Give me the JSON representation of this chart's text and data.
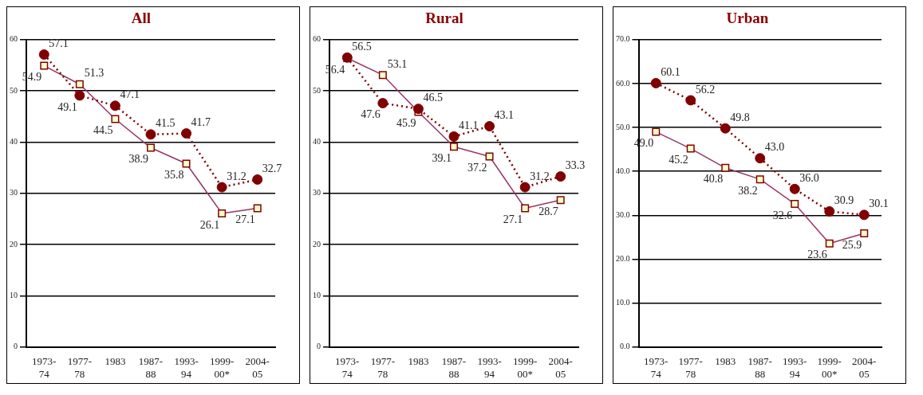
{
  "chart_data": [
    {
      "type": "line",
      "title": "All",
      "categories": [
        "1973-74",
        "1977-78",
        "1983",
        "1987-88",
        "1993-94",
        "1999-00*",
        "2004-05"
      ],
      "ylim": [
        0,
        60
      ],
      "yticks": [
        0,
        10,
        20,
        30,
        40,
        50,
        60
      ],
      "grid": "y",
      "legend": false,
      "data_labels": true,
      "series": [
        {
          "color": "#800000",
          "marker": "circle",
          "line_style": "dotted",
          "values": [
            57.1,
            49.1,
            47.1,
            41.5,
            41.7,
            31.2,
            32.7
          ]
        },
        {
          "color": "#993366",
          "marker": "square",
          "line_style": "solid",
          "values": [
            54.9,
            51.3,
            44.5,
            38.9,
            35.8,
            26.1,
            27.1
          ]
        }
      ]
    },
    {
      "type": "line",
      "title": "Rural",
      "categories": [
        "1973-74",
        "1977-78",
        "1983",
        "1987-88",
        "1993-94",
        "1999-00*",
        "2004-05"
      ],
      "ylim": [
        0,
        60
      ],
      "yticks": [
        0,
        10,
        20,
        30,
        40,
        50,
        60
      ],
      "grid": "y",
      "legend": false,
      "data_labels": true,
      "series": [
        {
          "color": "#800000",
          "marker": "circle",
          "line_style": "dotted",
          "values": [
            56.5,
            47.6,
            46.5,
            41.1,
            43.1,
            31.2,
            33.3
          ]
        },
        {
          "color": "#993366",
          "marker": "square",
          "line_style": "solid",
          "values": [
            56.4,
            53.1,
            45.9,
            39.1,
            37.2,
            27.1,
            28.7
          ]
        }
      ]
    },
    {
      "type": "line",
      "title": "Urban",
      "categories": [
        "1973-74",
        "1977-78",
        "1983",
        "1987-88",
        "1993-94",
        "1999-00*",
        "2004-05"
      ],
      "ylim": [
        0,
        70
      ],
      "yticks": [
        {
          "value": 0,
          "label": "0.0"
        },
        {
          "value": 10,
          "label": "10.0"
        },
        {
          "value": 20,
          "label": "20.0"
        },
        {
          "value": 30,
          "label": "30.0"
        },
        {
          "value": 40,
          "label": "40.0"
        },
        {
          "value": 50,
          "label": "50.0"
        },
        {
          "value": 60,
          "label": "60.0"
        },
        {
          "value": 70,
          "label": "70.0"
        }
      ],
      "grid": "y",
      "legend": false,
      "series": [
        {
          "color": "#800000",
          "marker": "circle",
          "line_style": "dotted",
          "values": [
            60.1,
            56.2,
            49.8,
            43.0,
            36.0,
            30.9,
            30.1
          ],
          "value_labels": [
            "60.1",
            "56.2",
            "49.8",
            "43.0",
            "36.0",
            "30.9",
            "30.1"
          ]
        },
        {
          "color": "#993366",
          "marker": "square",
          "line_style": "solid",
          "values": [
            49.0,
            45.2,
            40.8,
            38.2,
            32.6,
            23.6,
            25.9
          ],
          "value_labels": [
            "49.0",
            "45.2",
            "40.8",
            "38.2",
            "32.6",
            "23.6",
            "25.9"
          ]
        }
      ]
    }
  ]
}
